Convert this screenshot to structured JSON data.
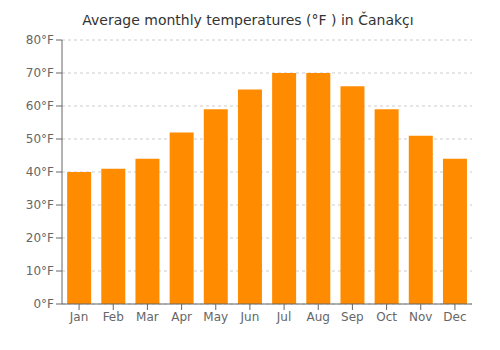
{
  "chart_data": {
    "type": "bar",
    "title": "Average monthly temperatures (°F ) in Čanakçı",
    "categories": [
      "Jan",
      "Feb",
      "Mar",
      "Apr",
      "May",
      "Jun",
      "Jul",
      "Aug",
      "Sep",
      "Oct",
      "Nov",
      "Dec"
    ],
    "values": [
      40,
      41,
      44,
      52,
      59,
      65,
      70,
      70,
      66,
      59,
      51,
      44
    ],
    "color": "#FF8C00",
    "ylim": [
      0,
      80
    ],
    "yticks": [
      {
        "value": 0,
        "label": "0°F"
      },
      {
        "value": 10,
        "label": "10°F"
      },
      {
        "value": 20,
        "label": "20°F"
      },
      {
        "value": 30,
        "label": "30°F"
      },
      {
        "value": 40,
        "label": "40°F"
      },
      {
        "value": 50,
        "label": "50°F"
      },
      {
        "value": 60,
        "label": "60°F"
      },
      {
        "value": 70,
        "label": "70°F"
      },
      {
        "value": 80,
        "label": "80°F"
      }
    ],
    "grid": true
  }
}
